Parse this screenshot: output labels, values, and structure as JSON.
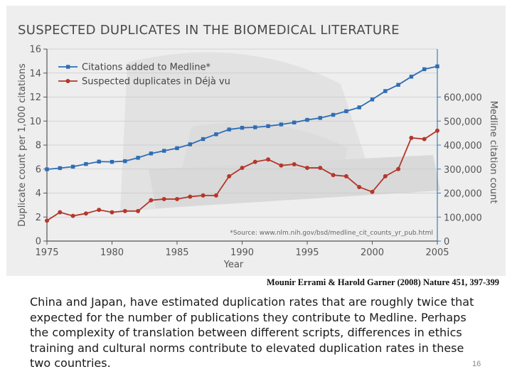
{
  "slide": {
    "citation": "Mounir Errami & Harold Garner (2008) Nature 451, 397-399",
    "body_text": "China and Japan, have estimated duplication rates that are roughly twice that expected for the number of publications they contribute to Medline. Perhaps the complexity of translation between different scripts, differences in ethics training and cultural norms contribute to elevated duplication rates in these two countries.",
    "page_number": "16"
  },
  "chart_data": {
    "type": "line",
    "title": "SUSPECTED DUPLICATES IN THE BIOMEDICAL LITERATURE",
    "xlabel": "Year",
    "ylabel_left": "Duplicate count per 1,000 citations",
    "ylabel_right": "Medline citation count",
    "xlim": [
      1975,
      2005
    ],
    "ylim_left": [
      0,
      16
    ],
    "ylim_right": [
      0,
      800000
    ],
    "x_ticks": [
      "1975",
      "1980",
      "1985",
      "1990",
      "1995",
      "2000",
      "2005"
    ],
    "y_ticks_left": [
      "0",
      "2",
      "4",
      "6",
      "8",
      "10",
      "12",
      "14",
      "16"
    ],
    "y_ticks_right": [
      "0",
      "100,000",
      "200,000",
      "300,000",
      "400,000",
      "500,000",
      "600,000"
    ],
    "source_note": "*Source: www.nlm.nih.gov/bsd/medline_cit_counts_yr_pub.html",
    "legend_position": "top-left",
    "colors": {
      "blue": "#2f6db5",
      "red": "#b5372b",
      "axis_blue": "#3f7fc0"
    },
    "series": [
      {
        "name": "Citations added to Medline*",
        "axis": "right",
        "marker": "square",
        "x": [
          1975,
          1976,
          1977,
          1978,
          1979,
          1980,
          1981,
          1982,
          1983,
          1984,
          1985,
          1986,
          1987,
          1988,
          1989,
          1990,
          1991,
          1992,
          1993,
          1994,
          1995,
          1996,
          1997,
          1998,
          1999,
          2000,
          2001,
          2002,
          2003,
          2004,
          2005
        ],
        "values": [
          299000,
          304000,
          310000,
          321000,
          331000,
          330000,
          333000,
          347000,
          365000,
          376000,
          387000,
          403000,
          425000,
          445000,
          465000,
          472000,
          474000,
          479000,
          486000,
          494000,
          505000,
          513000,
          526000,
          541000,
          557000,
          590000,
          625000,
          651000,
          685000,
          716000,
          728000
        ]
      },
      {
        "name": "Suspected duplicates in Déjà vu",
        "axis": "left",
        "marker": "circle",
        "x": [
          1975,
          1976,
          1977,
          1978,
          1979,
          1980,
          1981,
          1982,
          1983,
          1984,
          1985,
          1986,
          1987,
          1988,
          1989,
          1990,
          1991,
          1992,
          1993,
          1994,
          1995,
          1996,
          1997,
          1998,
          1999,
          2000,
          2001,
          2002,
          2003,
          2004,
          2005
        ],
        "values": [
          1.7,
          2.4,
          2.1,
          2.3,
          2.6,
          2.4,
          2.5,
          2.5,
          3.4,
          3.5,
          3.5,
          3.7,
          3.8,
          3.8,
          5.4,
          6.1,
          6.6,
          6.8,
          6.3,
          6.4,
          6.1,
          6.1,
          5.5,
          5.4,
          4.5,
          4.1,
          5.4,
          6.0,
          8.6,
          8.5,
          9.2
        ]
      }
    ]
  }
}
